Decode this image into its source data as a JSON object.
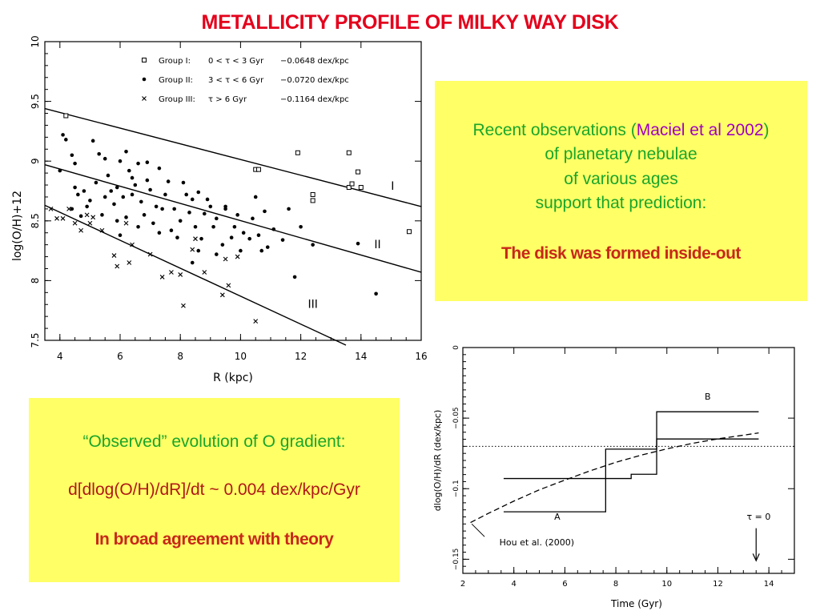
{
  "slide": {
    "title": "METALLICITY PROFILE OF MILKY WAY DISK"
  },
  "box_top": {
    "line1_pre": "Recent observations (",
    "line1_ref": "Maciel et al 2002",
    "line1_post": ")",
    "line2": "of planetary nebulae",
    "line3": "of various ages",
    "line4": "support that prediction:",
    "conclusion": "The disk was formed inside-out"
  },
  "box_bottom": {
    "line1": "“Observed” evolution of O gradient:",
    "line2": "d[dlog(O/H)/dR]/dt ~ 0.004 dex/kpc/Gyr",
    "line3": "In broad agreement with theory"
  },
  "chart_data": [
    {
      "type": "scatter",
      "xlabel": "R (kpc)",
      "ylabel": "log(O/H)+12",
      "xlim": [
        3.5,
        16
      ],
      "ylim": [
        7.5,
        10
      ],
      "xticks": [
        "4",
        "6",
        "8",
        "10",
        "12",
        "14",
        "16"
      ],
      "yticks": [
        "7.5",
        "8",
        "8.5",
        "9",
        "9.5",
        "10"
      ],
      "legend": [
        {
          "marker": "square",
          "group": "Group I:",
          "range": "0 < τ < 3 Gyr",
          "slope": "−0.0648 dex/kpc"
        },
        {
          "marker": "dot",
          "group": "Group II:",
          "range": "3 < τ < 6 Gyr",
          "slope": "−0.0720 dex/kpc"
        },
        {
          "marker": "cross",
          "group": "Group III:",
          "range": "τ > 6 Gyr",
          "slope": "−0.1164 dex/kpc"
        }
      ],
      "fit_lines": [
        {
          "label": "I",
          "x": [
            3.5,
            16
          ],
          "y": [
            9.44,
            8.62
          ]
        },
        {
          "label": "II",
          "x": [
            3.5,
            16
          ],
          "y": [
            8.97,
            8.07
          ]
        },
        {
          "label": "III",
          "x": [
            3.5,
            13.5
          ],
          "y": [
            8.63,
            7.46
          ]
        }
      ],
      "line_labels": [
        {
          "text": "I",
          "x": 15.05,
          "y": 8.76
        },
        {
          "text": "II",
          "x": 14.55,
          "y": 8.27
        },
        {
          "text": "III",
          "x": 12.4,
          "y": 7.77
        }
      ],
      "series": [
        {
          "name": "Group I",
          "marker": "square",
          "points": [
            [
              4.2,
              9.38
            ],
            [
              10.5,
              8.93
            ],
            [
              10.6,
              8.93
            ],
            [
              11.9,
              9.07
            ],
            [
              12.4,
              8.72
            ],
            [
              12.4,
              8.67
            ],
            [
              13.6,
              9.07
            ],
            [
              13.6,
              8.78
            ],
            [
              13.7,
              8.81
            ],
            [
              13.9,
              8.91
            ],
            [
              14.0,
              8.78
            ],
            [
              15.6,
              8.41
            ]
          ]
        },
        {
          "name": "Group II",
          "marker": "dot",
          "points": [
            [
              4.1,
              9.22
            ],
            [
              4.2,
              9.18
            ],
            [
              4.4,
              9.05
            ],
            [
              4.5,
              8.98
            ],
            [
              4.5,
              8.78
            ],
            [
              4.8,
              8.75
            ],
            [
              5.1,
              9.17
            ],
            [
              5.3,
              9.06
            ],
            [
              5.5,
              9.02
            ],
            [
              6.0,
              9.0
            ],
            [
              6.2,
              9.08
            ],
            [
              6.3,
              8.92
            ],
            [
              6.6,
              8.98
            ],
            [
              6.9,
              8.99
            ],
            [
              7.3,
              8.94
            ],
            [
              4.0,
              8.92
            ],
            [
              4.6,
              8.72
            ],
            [
              5.0,
              8.67
            ],
            [
              5.2,
              8.82
            ],
            [
              5.6,
              8.88
            ],
            [
              5.8,
              8.64
            ],
            [
              6.1,
              8.7
            ],
            [
              6.4,
              8.72
            ],
            [
              6.7,
              8.66
            ],
            [
              7.0,
              8.76
            ],
            [
              7.2,
              8.62
            ],
            [
              7.5,
              8.72
            ],
            [
              7.8,
              8.6
            ],
            [
              8.1,
              8.82
            ],
            [
              8.4,
              8.68
            ],
            [
              8.6,
              8.74
            ],
            [
              8.8,
              8.56
            ],
            [
              9.0,
              8.62
            ],
            [
              9.2,
              8.52
            ],
            [
              9.5,
              8.6
            ],
            [
              9.8,
              8.45
            ],
            [
              10.1,
              8.4
            ],
            [
              10.4,
              8.52
            ],
            [
              10.6,
              8.38
            ],
            [
              10.9,
              8.28
            ],
            [
              11.1,
              8.43
            ],
            [
              11.4,
              8.34
            ],
            [
              4.4,
              8.6
            ],
            [
              4.7,
              8.54
            ],
            [
              4.9,
              8.62
            ],
            [
              5.4,
              8.55
            ],
            [
              5.7,
              8.75
            ],
            [
              5.9,
              8.5
            ],
            [
              6.2,
              8.53
            ],
            [
              6.5,
              8.8
            ],
            [
              6.8,
              8.55
            ],
            [
              7.1,
              8.48
            ],
            [
              7.4,
              8.6
            ],
            [
              7.7,
              8.42
            ],
            [
              8.0,
              8.5
            ],
            [
              8.3,
              8.57
            ],
            [
              8.5,
              8.45
            ],
            [
              8.7,
              8.35
            ],
            [
              9.1,
              8.45
            ],
            [
              9.4,
              8.3
            ],
            [
              9.7,
              8.36
            ],
            [
              10.0,
              8.25
            ],
            [
              10.3,
              8.35
            ],
            [
              10.7,
              8.25
            ],
            [
              11.6,
              8.6
            ],
            [
              12.0,
              8.45
            ],
            [
              12.4,
              8.3
            ],
            [
              11.8,
              8.03
            ],
            [
              14.5,
              7.89
            ],
            [
              13.9,
              8.31
            ],
            [
              9.5,
              8.62
            ],
            [
              9.9,
              8.55
            ],
            [
              10.5,
              8.7
            ],
            [
              10.8,
              8.58
            ],
            [
              8.9,
              8.68
            ],
            [
              8.2,
              8.72
            ],
            [
              7.6,
              8.83
            ],
            [
              6.9,
              8.84
            ],
            [
              6.4,
              8.86
            ],
            [
              5.9,
              8.78
            ],
            [
              5.5,
              8.7
            ],
            [
              7.9,
              8.36
            ],
            [
              8.6,
              8.25
            ],
            [
              9.2,
              8.22
            ],
            [
              8.4,
              8.15
            ],
            [
              6.0,
              8.38
            ],
            [
              6.6,
              8.45
            ],
            [
              7.3,
              8.4
            ]
          ]
        },
        {
          "name": "Group III",
          "marker": "cross",
          "points": [
            [
              3.7,
              8.6
            ],
            [
              3.9,
              8.52
            ],
            [
              4.1,
              8.52
            ],
            [
              4.3,
              8.6
            ],
            [
              4.5,
              8.48
            ],
            [
              4.7,
              8.42
            ],
            [
              4.9,
              8.55
            ],
            [
              5.0,
              8.48
            ],
            [
              5.1,
              8.53
            ],
            [
              5.4,
              8.42
            ],
            [
              5.8,
              8.21
            ],
            [
              5.9,
              8.12
            ],
            [
              6.3,
              8.15
            ],
            [
              6.4,
              8.3
            ],
            [
              7.0,
              8.22
            ],
            [
              7.4,
              8.03
            ],
            [
              7.7,
              8.07
            ],
            [
              8.0,
              8.05
            ],
            [
              8.1,
              7.79
            ],
            [
              8.4,
              8.26
            ],
            [
              8.8,
              8.07
            ],
            [
              9.4,
              7.88
            ],
            [
              9.6,
              7.96
            ],
            [
              10.5,
              7.66
            ],
            [
              9.5,
              8.18
            ],
            [
              6.2,
              8.48
            ],
            [
              8.5,
              8.35
            ],
            [
              9.9,
              8.2
            ]
          ]
        }
      ]
    },
    {
      "type": "line",
      "xlabel": "Time (Gyr)",
      "ylabel": "dlog(O/H)/dR (dex/kpc)",
      "xlim": [
        2,
        15
      ],
      "ylim": [
        -0.16,
        0
      ],
      "xticks": [
        "2",
        "4",
        "6",
        "8",
        "10",
        "12",
        "14"
      ],
      "yticks": [
        "0",
        "−0.05",
        "−0.1",
        "−0.15"
      ],
      "reference_level": -0.07,
      "series": [
        {
          "name": "A",
          "kind": "step",
          "x": [
            3.6,
            7.6,
            7.6,
            9.6,
            9.6,
            10.6,
            10.6,
            13.6
          ],
          "y": [
            -0.1164,
            -0.1164,
            -0.072,
            -0.072,
            -0.0648,
            -0.0648,
            -0.0648,
            -0.0648
          ]
        },
        {
          "name": "B",
          "kind": "step",
          "x": [
            3.6,
            8.6,
            8.6,
            9.6,
            9.6,
            13.6
          ],
          "y": [
            -0.0928,
            -0.0928,
            -0.0898,
            -0.0898,
            -0.0455,
            -0.0455
          ]
        },
        {
          "name": "Hou et al. (2000)",
          "kind": "dashed",
          "x": [
            2.3,
            3,
            4,
            5,
            6,
            7,
            8,
            9,
            10,
            11,
            12,
            13,
            13.6
          ],
          "y": [
            -0.124,
            -0.1175,
            -0.1088,
            -0.1008,
            -0.0939,
            -0.0873,
            -0.0813,
            -0.0762,
            -0.0718,
            -0.0679,
            -0.0647,
            -0.0621,
            -0.0605
          ]
        }
      ],
      "annotations": [
        {
          "text": "A",
          "x": 5.7,
          "y": -0.122
        },
        {
          "text": "B",
          "x": 11.6,
          "y": -0.037
        },
        {
          "text": "Hou et al. (2000)",
          "x": 4.9,
          "y": -0.14
        },
        {
          "text": "τ = 0",
          "x": 13.6,
          "y": -0.122
        }
      ],
      "tau0_arrow_x": 13.5
    }
  ]
}
